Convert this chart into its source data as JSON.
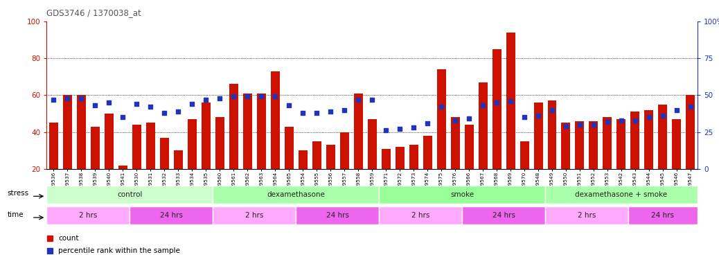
{
  "title": "GDS3746 / 1370038_at",
  "samples": [
    "GSM389536",
    "GSM389537",
    "GSM389538",
    "GSM389539",
    "GSM389540",
    "GSM389541",
    "GSM389530",
    "GSM389531",
    "GSM389532",
    "GSM389533",
    "GSM389534",
    "GSM389535",
    "GSM389560",
    "GSM389561",
    "GSM389562",
    "GSM389563",
    "GSM389564",
    "GSM389565",
    "GSM389554",
    "GSM389555",
    "GSM389556",
    "GSM389557",
    "GSM389558",
    "GSM389559",
    "GSM389571",
    "GSM389572",
    "GSM389573",
    "GSM389574",
    "GSM389575",
    "GSM389576",
    "GSM389566",
    "GSM389567",
    "GSM389568",
    "GSM389569",
    "GSM389570",
    "GSM389548",
    "GSM389549",
    "GSM389550",
    "GSM389551",
    "GSM389552",
    "GSM389553",
    "GSM389542",
    "GSM389543",
    "GSM389544",
    "GSM389545",
    "GSM389546",
    "GSM389547"
  ],
  "counts": [
    45,
    60,
    60,
    43,
    50,
    22,
    44,
    45,
    37,
    30,
    47,
    56,
    48,
    66,
    61,
    61,
    73,
    43,
    30,
    35,
    33,
    40,
    61,
    47,
    31,
    32,
    33,
    38,
    74,
    48,
    44,
    67,
    85,
    94,
    35,
    56,
    57,
    45,
    46,
    46,
    48,
    47,
    51,
    52,
    55,
    47,
    60
  ],
  "percentile_ranks": [
    47,
    48,
    48,
    43,
    45,
    35,
    44,
    42,
    38,
    39,
    44,
    47,
    48,
    49,
    49,
    49,
    49,
    43,
    38,
    38,
    39,
    40,
    47,
    47,
    26,
    27,
    28,
    31,
    42,
    33,
    34,
    43,
    45,
    46,
    35,
    36,
    40,
    29,
    30,
    30,
    32,
    33,
    33,
    35,
    36,
    40,
    42
  ],
  "bar_color": "#cc1100",
  "dot_color": "#2233bb",
  "title_color": "#555555",
  "stress_groups": [
    {
      "label": "control",
      "start": 0,
      "end": 11,
      "color": "#ccffcc"
    },
    {
      "label": "dexamethasone",
      "start": 12,
      "end": 23,
      "color": "#aaffaa"
    },
    {
      "label": "smoke",
      "start": 24,
      "end": 35,
      "color": "#99ff99"
    },
    {
      "label": "dexamethasone + smoke",
      "start": 36,
      "end": 46,
      "color": "#aaffaa"
    }
  ],
  "time_groups": [
    {
      "label": "2 hrs",
      "start": 0,
      "end": 5,
      "color": "#ffaaff"
    },
    {
      "label": "24 hrs",
      "start": 6,
      "end": 11,
      "color": "#ee66ee"
    },
    {
      "label": "2 hrs",
      "start": 12,
      "end": 17,
      "color": "#ffaaff"
    },
    {
      "label": "24 hrs",
      "start": 18,
      "end": 23,
      "color": "#ee66ee"
    },
    {
      "label": "2 hrs",
      "start": 24,
      "end": 29,
      "color": "#ffaaff"
    },
    {
      "label": "24 hrs",
      "start": 30,
      "end": 35,
      "color": "#ee66ee"
    },
    {
      "label": "2 hrs",
      "start": 36,
      "end": 41,
      "color": "#ffaaff"
    },
    {
      "label": "24 hrs",
      "start": 42,
      "end": 46,
      "color": "#ee66ee"
    }
  ],
  "legend_items": [
    {
      "label": "count",
      "color": "#cc1100"
    },
    {
      "label": "percentile rank within the sample",
      "color": "#2233bb"
    }
  ]
}
